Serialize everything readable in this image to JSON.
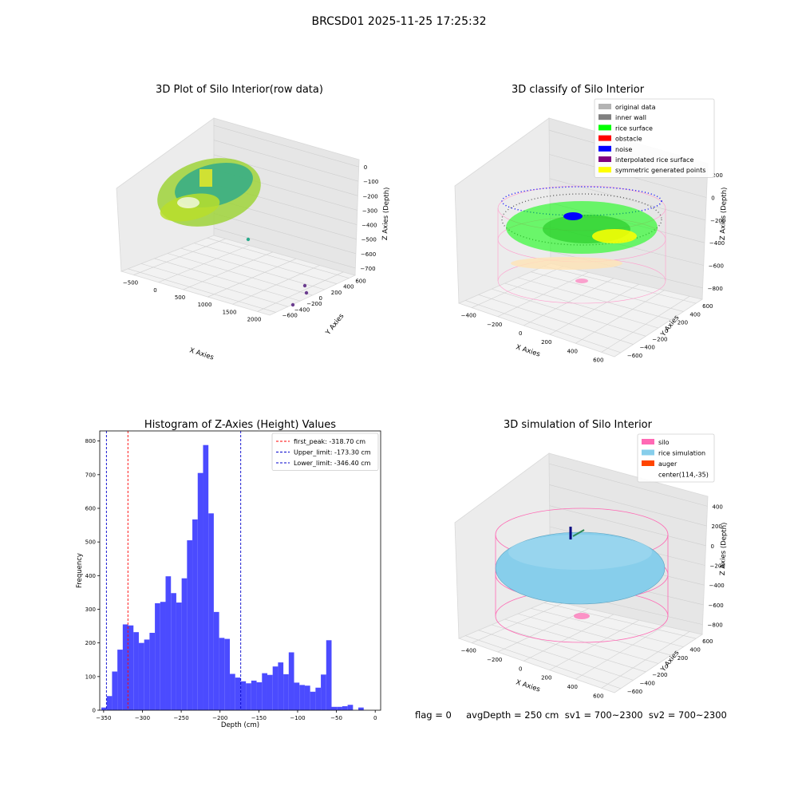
{
  "figure": {
    "suptitle": "BRCSD01 2025-11-25 17:25:32",
    "footer": "flag = 0     avgDepth = 250 cm  sv1 = 700~2300  sv2 = 700~2300"
  },
  "panels": {
    "raw": {
      "title": "3D Plot of Silo Interior(row data)",
      "xlabel": "X Axies",
      "ylabel": "Y Axies",
      "zlabel": "Z Axies (Depth)",
      "xticks": [
        "−500",
        "0",
        "500",
        "1000",
        "1500",
        "2000"
      ],
      "yticks": [
        "−600",
        "−400",
        "−200",
        "0",
        "200",
        "400",
        "600"
      ],
      "zticks": [
        "0",
        "−100",
        "−200",
        "−300",
        "−400",
        "−500",
        "−600",
        "−700"
      ]
    },
    "classify": {
      "title": "3D classify of Silo Interior",
      "xlabel": "X Axies",
      "ylabel": "Y Axies",
      "zlabel": "Z Axies (Depth)",
      "xticks": [
        "−400",
        "−200",
        "0",
        "200",
        "400",
        "600"
      ],
      "yticks": [
        "−600",
        "−400",
        "−200",
        "0",
        "200",
        "400",
        "600"
      ],
      "zticks": [
        "200",
        "0",
        "−200",
        "−400",
        "−600",
        "−800"
      ],
      "legend": [
        {
          "label": "original data",
          "color": "#b3b3b3"
        },
        {
          "label": "inner wall",
          "color": "#808080"
        },
        {
          "label": "rice surface",
          "color": "#00ff00"
        },
        {
          "label": "obstacle",
          "color": "#ff0000"
        },
        {
          "label": "noise",
          "color": "#0000ff"
        },
        {
          "label": "interpolated rice surface",
          "color": "#800080"
        },
        {
          "label": "symmetric generated points",
          "color": "#ffff00"
        }
      ]
    },
    "simulation": {
      "title": "3D simulation of Silo Interior",
      "xlabel": "X Axies",
      "ylabel": "Y Axies",
      "zlabel": "Z Axies (Depth)",
      "xticks": [
        "−400",
        "−200",
        "0",
        "200",
        "400",
        "600"
      ],
      "yticks": [
        "−600",
        "−400",
        "−200",
        "0",
        "200",
        "400",
        "600"
      ],
      "zticks": [
        "400",
        "200",
        "0",
        "−200",
        "−400",
        "−600",
        "−800"
      ],
      "legend": [
        {
          "label": "silo",
          "color": "#ff69b4"
        },
        {
          "label": "rice simulation",
          "color": "#87ceeb"
        },
        {
          "label": "auger",
          "color": "#ff4500"
        },
        {
          "label": "center(114,-35)",
          "color": ""
        }
      ]
    }
  },
  "chart_data": {
    "type": "bar",
    "title": "Histogram of Z-Axies (Height) Values",
    "xlabel": "Depth (cm)",
    "ylabel": "Frequency",
    "xlim": [
      -355,
      7
    ],
    "ylim": [
      0,
      830
    ],
    "xticks": [
      -350,
      -300,
      -250,
      -200,
      -150,
      -100,
      -50,
      0
    ],
    "yticks": [
      0,
      100,
      200,
      300,
      400,
      500,
      600,
      700,
      800
    ],
    "bar_color": "#4b4bff",
    "bin_width": 6.9,
    "bins": [
      [
        -349.5,
        8
      ],
      [
        -342.6,
        42
      ],
      [
        -335.7,
        115
      ],
      [
        -328.8,
        180
      ],
      [
        -321.9,
        255
      ],
      [
        -315.0,
        252
      ],
      [
        -308.1,
        232
      ],
      [
        -301.2,
        200
      ],
      [
        -294.3,
        210
      ],
      [
        -287.4,
        230
      ],
      [
        -280.5,
        318
      ],
      [
        -273.6,
        322
      ],
      [
        -266.7,
        398
      ],
      [
        -259.8,
        348
      ],
      [
        -252.9,
        320
      ],
      [
        -246.0,
        392
      ],
      [
        -239.1,
        505
      ],
      [
        -232.2,
        567
      ],
      [
        -225.3,
        705
      ],
      [
        -218.4,
        788
      ],
      [
        -211.5,
        585
      ],
      [
        -204.6,
        292
      ],
      [
        -197.7,
        215
      ],
      [
        -190.8,
        212
      ],
      [
        -183.9,
        108
      ],
      [
        -177.0,
        97
      ],
      [
        -170.1,
        86
      ],
      [
        -163.2,
        80
      ],
      [
        -156.3,
        88
      ],
      [
        -149.4,
        83
      ],
      [
        -142.5,
        110
      ],
      [
        -135.6,
        105
      ],
      [
        -128.7,
        130
      ],
      [
        -121.8,
        142
      ],
      [
        -114.9,
        107
      ],
      [
        -108.0,
        172
      ],
      [
        -101.1,
        82
      ],
      [
        -94.2,
        75
      ],
      [
        -87.3,
        73
      ],
      [
        -80.4,
        55
      ],
      [
        -73.5,
        67
      ],
      [
        -66.6,
        106
      ],
      [
        -59.7,
        208
      ],
      [
        -52.8,
        10
      ],
      [
        -45.9,
        10
      ],
      [
        -39.0,
        12
      ],
      [
        -32.1,
        16
      ],
      [
        -18.3,
        8
      ]
    ],
    "vlines": [
      {
        "label": "first_peak: -318.70 cm",
        "x": -318.7,
        "color": "#ff0000"
      },
      {
        "label": "Upper_limit: -173.30 cm",
        "x": -173.3,
        "color": "#0000cc"
      },
      {
        "label": "Lower_limit: -346.40 cm",
        "x": -346.4,
        "color": "#0000cc"
      }
    ]
  }
}
